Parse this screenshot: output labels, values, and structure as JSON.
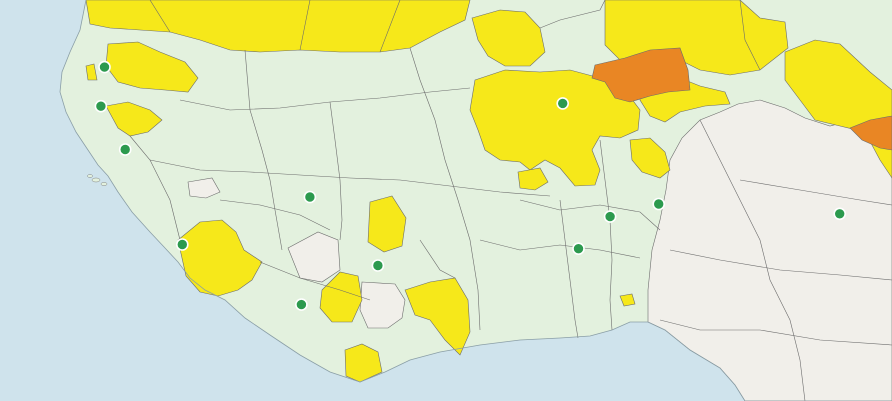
{
  "map": {
    "colors": {
      "ocean": "#cfe3ec",
      "land_default": "#e3f1de",
      "no_data": "#f1efea",
      "phase_stressed": "#f6e81a",
      "phase_crisis": "#e98624",
      "phase_emergency": "#e4572e",
      "border": "#6c6c6c",
      "marker": "#2c9a4e",
      "marker_stroke": "#ffffff"
    },
    "markers": [
      {
        "id": "m1",
        "lon": -16.4,
        "lat": 14.8
      },
      {
        "id": "m2",
        "lon": -16.55,
        "lat": 13.4
      },
      {
        "id": "m3",
        "lon": -15.55,
        "lat": 11.85
      },
      {
        "id": "m4",
        "lon": -13.2,
        "lat": 8.45
      },
      {
        "id": "m5",
        "lon": -7.95,
        "lat": 10.15
      },
      {
        "id": "m6",
        "lon": -8.3,
        "lat": 6.3
      },
      {
        "id": "m7",
        "lon": -5.15,
        "lat": 7.7
      },
      {
        "id": "m8",
        "lon": 2.45,
        "lat": 13.5
      },
      {
        "id": "m9",
        "lon": 3.1,
        "lat": 8.3
      },
      {
        "id": "m10",
        "lon": 4.4,
        "lat": 9.45
      },
      {
        "id": "m11",
        "lon": 6.4,
        "lat": 9.9
      },
      {
        "id": "m12",
        "lon": 13.85,
        "lat": 9.55
      }
    ]
  }
}
